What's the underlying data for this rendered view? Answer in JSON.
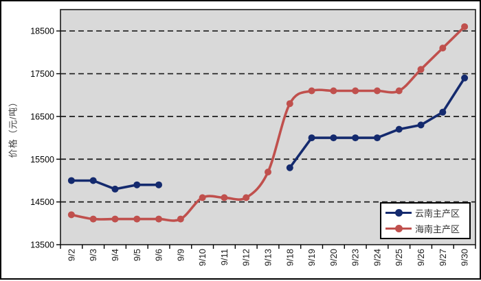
{
  "chart_data": {
    "type": "line",
    "title": "",
    "xlabel": "",
    "ylabel": "价格（元/吨）",
    "ylim": [
      13500,
      19000
    ],
    "y_ticks": [
      13500,
      14500,
      15500,
      16500,
      17500,
      18500
    ],
    "grid": "dashed-horizontal",
    "plot_bg_color": "#d9d9d9",
    "gridline_color": "#1a1a1a",
    "legend_position": "bottom-right",
    "categories": [
      "9/2",
      "9/3",
      "9/4",
      "9/5",
      "9/6",
      "9/9",
      "9/10",
      "9/11",
      "9/12",
      "9/13",
      "9/18",
      "9/19",
      "9/20",
      "9/23",
      "9/24",
      "9/25",
      "9/26",
      "9/27",
      "9/30"
    ],
    "series": [
      {
        "name": "云南主产区",
        "color": "#142a6e",
        "smooth": false,
        "values": [
          15000,
          15000,
          14800,
          14900,
          14900,
          null,
          null,
          null,
          null,
          null,
          15300,
          16000,
          16000,
          16000,
          16000,
          16200,
          16300,
          16600,
          17400
        ]
      },
      {
        "name": "海南主产区",
        "color": "#c0504d",
        "smooth": true,
        "values": [
          14200,
          14100,
          14100,
          14100,
          14100,
          14100,
          14600,
          14600,
          14600,
          15200,
          16800,
          17100,
          17100,
          17100,
          17100,
          17100,
          17600,
          18100,
          18600
        ]
      }
    ]
  }
}
